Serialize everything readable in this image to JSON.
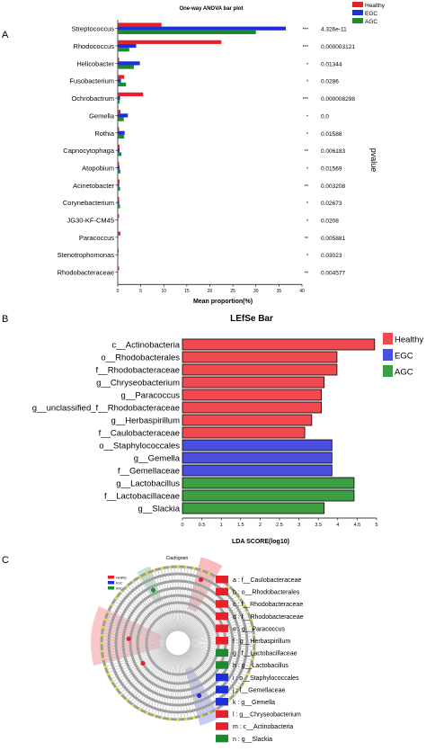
{
  "colors": {
    "healthy": "#e8202a",
    "egc": "#1f2fd6",
    "agc": "#1c8a2e",
    "lefse_healthy": "#f04a50",
    "lefse_egc": "#4b4fe0",
    "lefse_agc": "#3e9e44"
  },
  "panels": {
    "a": "A",
    "b": "B",
    "c": "C"
  },
  "chart_data": [
    {
      "type": "bar",
      "orientation": "horizontal",
      "title": "One-way ANOVA bar plot",
      "xlabel": "Mean proportion(%)",
      "ylabel": "",
      "right_axis_label": "pvalue",
      "xlim": [
        0,
        40
      ],
      "xticks": [
        "0",
        "5",
        "10",
        "15",
        "20",
        "25",
        "30",
        "35",
        "40"
      ],
      "legend": [
        "Healthy",
        "EGC",
        "AGC"
      ],
      "legend_position": "top-right",
      "categories": [
        "Streptococcus",
        "Rhodococcus",
        "Helicobacter",
        "Fusobacterium",
        "Ochrobactrum",
        "Gemella",
        "Rothia",
        "Capnocytophaga",
        "Atopobium",
        "Acinetobacter",
        "Corynebacterium",
        "JG30-KF-CM45",
        "Paracoccus",
        "Stenotrophomonas",
        "Rhodobacteraceae"
      ],
      "series": [
        {
          "name": "Healthy",
          "values": [
            9.5,
            22.5,
            0.3,
            1.4,
            5.5,
            0.6,
            0.3,
            0.4,
            0.3,
            0.4,
            0.3,
            0.3,
            0.6,
            0.2,
            0.3
          ]
        },
        {
          "name": "EGC",
          "values": [
            36.5,
            4.0,
            4.8,
            0.7,
            0.5,
            2.2,
            1.5,
            0.4,
            0.4,
            0.3,
            0.3,
            0.1,
            0.1,
            0.1,
            0.0
          ]
        },
        {
          "name": "AGC",
          "values": [
            30.0,
            2.5,
            3.5,
            1.8,
            0.4,
            1.3,
            1.4,
            0.8,
            0.6,
            0.5,
            0.5,
            0.1,
            0.1,
            0.0,
            0.0
          ]
        }
      ],
      "significance": [
        "***",
        "***",
        "*",
        "*",
        "***",
        "*",
        "*",
        "**",
        "*",
        "**",
        "*",
        "*",
        "**",
        "*",
        "**"
      ],
      "pvalues": [
        "4.326e-11",
        "0.000003121",
        "0.01344",
        "0.0286",
        "0.000008298",
        "0.0",
        "0.01588",
        "0.006183",
        "0.01569",
        "0.003208",
        "0.02673",
        "0.0208",
        "0.005881",
        "0.03023",
        "0.004577"
      ]
    },
    {
      "type": "bar",
      "orientation": "horizontal",
      "title": "LEfSe Bar",
      "xlabel": "LDA SCORE(log10)",
      "ylabel": "",
      "xlim": [
        0,
        5
      ],
      "xticks": [
        "0",
        "0.5",
        "1",
        "1.5",
        "2",
        "2.5",
        "3",
        "3.5",
        "4",
        "4.5",
        "5"
      ],
      "legend": [
        "Healthy",
        "EGC",
        "AGC"
      ],
      "legend_position": "right",
      "categories": [
        "c__Actinobacteria",
        "o__Rhodobacterales",
        "f__Rhodobacteraceae",
        "g__Chryseobacterium",
        "g__Paracoccus",
        "g__unclassified_f__Rhodobacteraceae",
        "g__Herbaspirillum",
        "f__Caulobacteraceae",
        "o__Staphylococcales",
        "g__Gemella",
        "f__Gemellaceae",
        "g__Lactobacillus",
        "f__Lactobacillaceae",
        "g__Slackia"
      ],
      "values": [
        4.95,
        3.98,
        3.98,
        3.65,
        3.58,
        3.58,
        3.33,
        3.15,
        3.85,
        3.85,
        3.85,
        4.42,
        4.42,
        3.65
      ],
      "groups": [
        "Healthy",
        "Healthy",
        "Healthy",
        "Healthy",
        "Healthy",
        "Healthy",
        "Healthy",
        "Healthy",
        "EGC",
        "EGC",
        "EGC",
        "AGC",
        "AGC",
        "AGC"
      ]
    }
  ],
  "cladogram": {
    "title": "Cladogram",
    "mini_legend": [
      "Healthy",
      "EGC",
      "AGC"
    ],
    "legend_entries": [
      {
        "label": "a : f__Caulobacteraceae",
        "group": "Healthy"
      },
      {
        "label": "b : o__Rhodobacterales",
        "group": "Healthy"
      },
      {
        "label": "c : f__Rhodobacteraceae",
        "group": "Healthy"
      },
      {
        "label": "d : f__Rhodobacteraceae",
        "group": "Healthy"
      },
      {
        "label": "e : g__Paracoccus",
        "group": "Healthy"
      },
      {
        "label": "f : g__Herbaspirillum",
        "group": "Healthy"
      },
      {
        "label": "g : f__Lactobacillaceae",
        "group": "AGC"
      },
      {
        "label": "h : g__Lactobacillus",
        "group": "AGC"
      },
      {
        "label": "i : o__Staphylococcales",
        "group": "EGC"
      },
      {
        "label": "j : f__Gemellaceae",
        "group": "EGC"
      },
      {
        "label": "k : g__Gemella",
        "group": "EGC"
      },
      {
        "label": "l : g__Chryseobacterium",
        "group": "Healthy"
      },
      {
        "label": "m : c__Actinobacteria",
        "group": "Healthy"
      },
      {
        "label": "n : g__Slackia",
        "group": "AGC"
      }
    ]
  }
}
